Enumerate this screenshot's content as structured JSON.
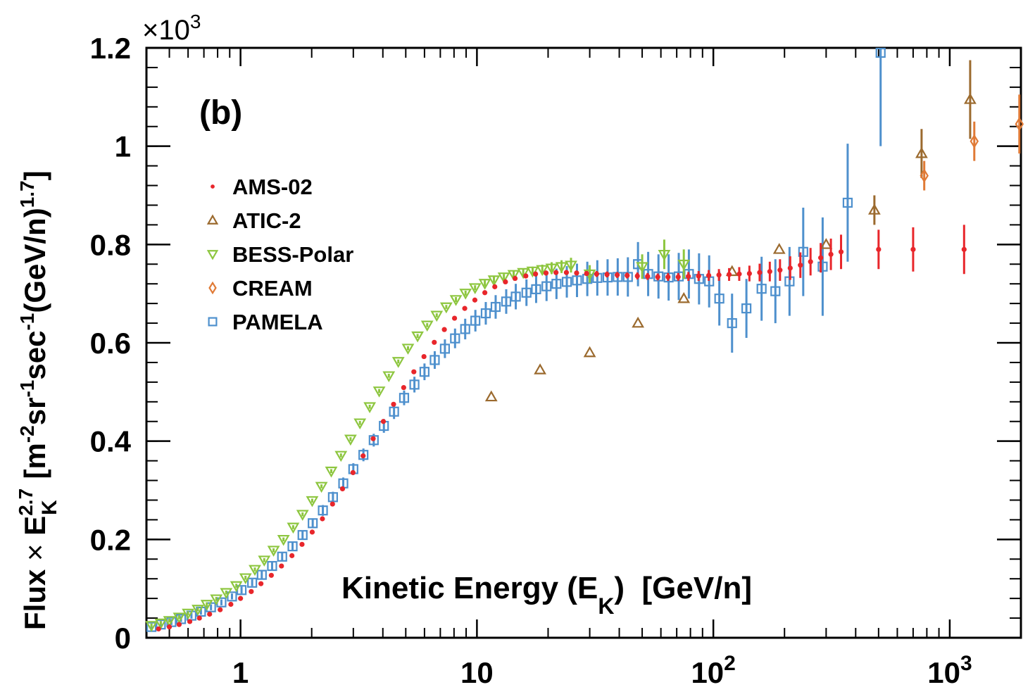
{
  "chart_data": {
    "type": "scatter",
    "panel_label": "(b)",
    "ylabel": "Flux × E_K^2.7 [m^-2sr^-1sec^-1(GeV/n)^1.7]",
    "ylabel_parts": {
      "lead": "Flux",
      "times": "×",
      "E": "E",
      "sub": "K",
      "sup": "2.7",
      "unit_open": "[m",
      "e1": "-2",
      "sr": "sr",
      "e2": "-1",
      "sec": "sec",
      "e3": "-1",
      "gev": "(GeV/n)",
      "e4": "1.7",
      "close": "]"
    },
    "xlabel": "Kinetic Energy (E_K) [GeV/n]",
    "xlabel_parts": {
      "main": "Kinetic Energy (E",
      "sub": "K",
      "close": ")  [GeV/n]"
    },
    "y_multiplier": {
      "times": "×",
      "base": "10",
      "exp": "3"
    },
    "xscale": "log",
    "xlim": [
      0.4,
      2000
    ],
    "ylim": [
      0,
      1.2
    ],
    "x_ticks": [
      {
        "value": 1,
        "label": "1"
      },
      {
        "value": 10,
        "label": "10"
      },
      {
        "value": 100,
        "base": "10",
        "exp": "2"
      },
      {
        "value": 1000,
        "base": "10",
        "exp": "3"
      }
    ],
    "y_ticks": [
      {
        "value": 0,
        "label": "0"
      },
      {
        "value": 0.2,
        "label": "0.2"
      },
      {
        "value": 0.4,
        "label": "0.4"
      },
      {
        "value": 0.6,
        "label": "0.6"
      },
      {
        "value": 0.8,
        "label": "0.8"
      },
      {
        "value": 1.0,
        "label": "1"
      },
      {
        "value": 1.2,
        "label": "1.2"
      }
    ],
    "legend_position": "upper-left",
    "series": [
      {
        "name": "AMS-02",
        "marker": "dot",
        "color": "#e8262b",
        "points": [
          [
            0.45,
            0.018
          ],
          [
            0.5,
            0.022
          ],
          [
            0.55,
            0.027
          ],
          [
            0.61,
            0.033
          ],
          [
            0.67,
            0.04
          ],
          [
            0.74,
            0.048
          ],
          [
            0.82,
            0.057
          ],
          [
            0.91,
            0.068
          ],
          [
            1.0,
            0.08
          ],
          [
            1.11,
            0.094
          ],
          [
            1.22,
            0.11
          ],
          [
            1.35,
            0.127
          ],
          [
            1.49,
            0.146
          ],
          [
            1.65,
            0.167
          ],
          [
            1.82,
            0.19
          ],
          [
            2.01,
            0.215
          ],
          [
            2.22,
            0.242
          ],
          [
            2.45,
            0.272
          ],
          [
            2.7,
            0.303
          ],
          [
            2.99,
            0.336
          ],
          [
            3.3,
            0.37
          ],
          [
            3.64,
            0.405
          ],
          [
            4.02,
            0.44
          ],
          [
            4.44,
            0.475
          ],
          [
            4.9,
            0.509
          ],
          [
            5.41,
            0.541
          ],
          [
            5.97,
            0.572
          ],
          [
            6.6,
            0.601
          ],
          [
            7.28,
            0.627
          ],
          [
            8.04,
            0.65
          ],
          [
            8.88,
            0.67
          ],
          [
            9.8,
            0.687
          ],
          [
            10.8,
            0.702
          ],
          [
            11.9,
            0.714
          ],
          [
            13.2,
            0.724
          ],
          [
            14.5,
            0.731
          ],
          [
            16.1,
            0.736
          ],
          [
            17.7,
            0.74
          ],
          [
            19.6,
            0.742
          ],
          [
            21.6,
            0.743
          ],
          [
            23.9,
            0.743
          ],
          [
            26.4,
            0.742
          ],
          [
            29.1,
            0.741
          ],
          [
            32.1,
            0.74
          ],
          [
            35.5,
            0.739
          ],
          [
            39.2,
            0.738
          ],
          [
            43.2,
            0.737
          ],
          [
            47.7,
            0.736
          ],
          [
            52.7,
            0.735
          ],
          [
            58.2,
            0.734
          ],
          [
            64.3,
            0.734
          ],
          [
            71.0,
            0.734
          ],
          [
            78.4,
            0.735
          ],
          [
            86.6,
            0.736
          ],
          [
            95.6,
            0.737
          ],
          [
            105.6,
            0.738
          ],
          [
            116.6,
            0.739
          ],
          [
            128.7,
            0.74
          ],
          [
            142.1,
            0.741
          ],
          [
            157,
            0.743
          ],
          [
            173.3,
            0.745
          ],
          [
            191.4,
            0.748
          ],
          [
            211.4,
            0.752
          ],
          [
            233.4,
            0.758
          ],
          [
            257.7,
            0.765
          ],
          [
            284.5,
            0.773
          ],
          [
            314.2,
            0.78
          ],
          [
            346.9,
            0.785
          ],
          [
            500,
            0.79
          ],
          [
            700,
            0.79
          ],
          [
            1150,
            0.79
          ]
        ],
        "errors": [
          0.004,
          0.004,
          0.004,
          0.004,
          0.004,
          0.004,
          0.004,
          0.004,
          0.004,
          0.004,
          0.004,
          0.004,
          0.004,
          0.004,
          0.004,
          0.004,
          0.004,
          0.004,
          0.004,
          0.004,
          0.004,
          0.004,
          0.004,
          0.004,
          0.004,
          0.004,
          0.004,
          0.004,
          0.004,
          0.004,
          0.004,
          0.004,
          0.004,
          0.004,
          0.004,
          0.004,
          0.005,
          0.005,
          0.005,
          0.005,
          0.005,
          0.005,
          0.005,
          0.006,
          0.006,
          0.006,
          0.006,
          0.007,
          0.007,
          0.007,
          0.008,
          0.008,
          0.009,
          0.01,
          0.011,
          0.012,
          0.013,
          0.014,
          0.016,
          0.018,
          0.02,
          0.022,
          0.024,
          0.026,
          0.028,
          0.03,
          0.032,
          0.035,
          0.04,
          0.045,
          0.05
        ]
      },
      {
        "name": "ATIC-2",
        "marker": "triangle-up",
        "color": "#9b6a2e",
        "points": [
          [
            11.5,
            0.49
          ],
          [
            18.5,
            0.545
          ],
          [
            30,
            0.58
          ],
          [
            48,
            0.64
          ],
          [
            75,
            0.69
          ],
          [
            120,
            0.745
          ],
          [
            190,
            0.79
          ],
          [
            300,
            0.8
          ],
          [
            480,
            0.87
          ],
          [
            760,
            0.985
          ],
          [
            1220,
            1.095
          ]
        ],
        "errors": [
          0,
          0,
          0,
          0,
          0,
          0,
          0,
          0,
          0.03,
          0.05,
          0.08
        ]
      },
      {
        "name": "BESS-Polar",
        "marker": "triangle-down",
        "color": "#8dc63f",
        "points": [
          [
            0.42,
            0.025
          ],
          [
            0.46,
            0.03
          ],
          [
            0.5,
            0.035
          ],
          [
            0.55,
            0.042
          ],
          [
            0.6,
            0.05
          ],
          [
            0.66,
            0.058
          ],
          [
            0.72,
            0.068
          ],
          [
            0.79,
            0.079
          ],
          [
            0.87,
            0.092
          ],
          [
            0.96,
            0.106
          ],
          [
            1.05,
            0.122
          ],
          [
            1.15,
            0.139
          ],
          [
            1.26,
            0.158
          ],
          [
            1.38,
            0.178
          ],
          [
            1.52,
            0.2
          ],
          [
            1.67,
            0.225
          ],
          [
            1.83,
            0.251
          ],
          [
            2.01,
            0.279
          ],
          [
            2.2,
            0.308
          ],
          [
            2.42,
            0.339
          ],
          [
            2.66,
            0.371
          ],
          [
            2.92,
            0.404
          ],
          [
            3.2,
            0.437
          ],
          [
            3.52,
            0.47
          ],
          [
            3.86,
            0.502
          ],
          [
            4.24,
            0.533
          ],
          [
            4.65,
            0.562
          ],
          [
            5.11,
            0.589
          ],
          [
            5.61,
            0.614
          ],
          [
            6.16,
            0.636
          ],
          [
            6.76,
            0.656
          ],
          [
            7.42,
            0.673
          ],
          [
            8.15,
            0.688
          ],
          [
            8.95,
            0.701
          ],
          [
            9.82,
            0.712
          ],
          [
            10.8,
            0.721
          ],
          [
            11.8,
            0.728
          ],
          [
            13.0,
            0.734
          ],
          [
            14.3,
            0.739
          ],
          [
            15.7,
            0.743
          ],
          [
            17.2,
            0.746
          ],
          [
            18.9,
            0.749
          ],
          [
            20.7,
            0.752
          ],
          [
            22.8,
            0.755
          ],
          [
            25.0,
            0.758
          ],
          [
            30,
            0.74
          ],
          [
            50,
            0.755
          ],
          [
            62,
            0.78
          ],
          [
            75,
            0.76
          ]
        ],
        "errors": [
          0.004,
          0.004,
          0.004,
          0.004,
          0.004,
          0.004,
          0.004,
          0.004,
          0.004,
          0.004,
          0.004,
          0.004,
          0.004,
          0.004,
          0.004,
          0.004,
          0.004,
          0.004,
          0.004,
          0.004,
          0.004,
          0.004,
          0.004,
          0.004,
          0.004,
          0.004,
          0.004,
          0.004,
          0.004,
          0.004,
          0.004,
          0.004,
          0.005,
          0.005,
          0.005,
          0.006,
          0.006,
          0.006,
          0.007,
          0.008,
          0.009,
          0.01,
          0.012,
          0.013,
          0.015,
          0.018,
          0.025,
          0.03,
          0.03
        ]
      },
      {
        "name": "CREAM",
        "marker": "diamond",
        "color": "#e07a36",
        "points": [
          [
            780,
            0.94
          ],
          [
            1270,
            1.01
          ],
          [
            1970,
            1.045
          ]
        ],
        "errors": [
          0.03,
          0.04,
          0.06
        ]
      },
      {
        "name": "PAMELA",
        "marker": "square",
        "color": "#4e90cd",
        "points": [
          [
            0.42,
            0.022
          ],
          [
            0.46,
            0.027
          ],
          [
            0.51,
            0.032
          ],
          [
            0.56,
            0.038
          ],
          [
            0.62,
            0.045
          ],
          [
            0.68,
            0.053
          ],
          [
            0.75,
            0.062
          ],
          [
            0.83,
            0.072
          ],
          [
            0.92,
            0.084
          ],
          [
            1.01,
            0.097
          ],
          [
            1.12,
            0.112
          ],
          [
            1.23,
            0.128
          ],
          [
            1.36,
            0.146
          ],
          [
            1.5,
            0.165
          ],
          [
            1.66,
            0.186
          ],
          [
            1.83,
            0.209
          ],
          [
            2.02,
            0.233
          ],
          [
            2.23,
            0.259
          ],
          [
            2.46,
            0.286
          ],
          [
            2.72,
            0.314
          ],
          [
            3.0,
            0.343
          ],
          [
            3.31,
            0.372
          ],
          [
            3.66,
            0.402
          ],
          [
            4.04,
            0.431
          ],
          [
            4.46,
            0.46
          ],
          [
            4.92,
            0.488
          ],
          [
            5.44,
            0.515
          ],
          [
            6.0,
            0.541
          ],
          [
            6.63,
            0.565
          ],
          [
            7.32,
            0.588
          ],
          [
            8.08,
            0.609
          ],
          [
            8.92,
            0.628
          ],
          [
            9.85,
            0.645
          ],
          [
            10.9,
            0.66
          ],
          [
            12.0,
            0.673
          ],
          [
            13.3,
            0.684
          ],
          [
            14.6,
            0.694
          ],
          [
            16.2,
            0.702
          ],
          [
            17.8,
            0.709
          ],
          [
            19.7,
            0.715
          ],
          [
            21.7,
            0.72
          ],
          [
            24.0,
            0.724
          ],
          [
            26.5,
            0.727
          ],
          [
            29.3,
            0.73
          ],
          [
            32.3,
            0.732
          ],
          [
            35.7,
            0.733
          ],
          [
            39.4,
            0.734
          ],
          [
            43.5,
            0.734
          ],
          [
            48,
            0.76
          ],
          [
            53,
            0.74
          ],
          [
            58.6,
            0.735
          ],
          [
            64.7,
            0.733
          ],
          [
            71.4,
            0.735
          ],
          [
            78.8,
            0.74
          ],
          [
            87,
            0.73
          ],
          [
            96,
            0.725
          ],
          [
            106,
            0.69
          ],
          [
            120,
            0.64
          ],
          [
            138,
            0.67
          ],
          [
            160,
            0.71
          ],
          [
            183,
            0.705
          ],
          [
            210,
            0.725
          ],
          [
            240,
            0.785
          ],
          [
            290,
            0.755
          ],
          [
            370,
            0.885
          ],
          [
            510,
            1.19
          ]
        ],
        "errors": [
          0.006,
          0.006,
          0.006,
          0.006,
          0.006,
          0.006,
          0.006,
          0.006,
          0.006,
          0.007,
          0.007,
          0.008,
          0.008,
          0.009,
          0.009,
          0.01,
          0.01,
          0.011,
          0.011,
          0.012,
          0.012,
          0.013,
          0.013,
          0.014,
          0.015,
          0.015,
          0.016,
          0.017,
          0.018,
          0.019,
          0.02,
          0.021,
          0.022,
          0.023,
          0.024,
          0.025,
          0.026,
          0.027,
          0.028,
          0.03,
          0.031,
          0.032,
          0.034,
          0.035,
          0.036,
          0.037,
          0.038,
          0.04,
          0.045,
          0.045,
          0.045,
          0.047,
          0.048,
          0.05,
          0.052,
          0.053,
          0.055,
          0.06,
          0.06,
          0.065,
          0.065,
          0.07,
          0.09,
          0.1,
          0.12,
          0.19
        ]
      }
    ]
  }
}
